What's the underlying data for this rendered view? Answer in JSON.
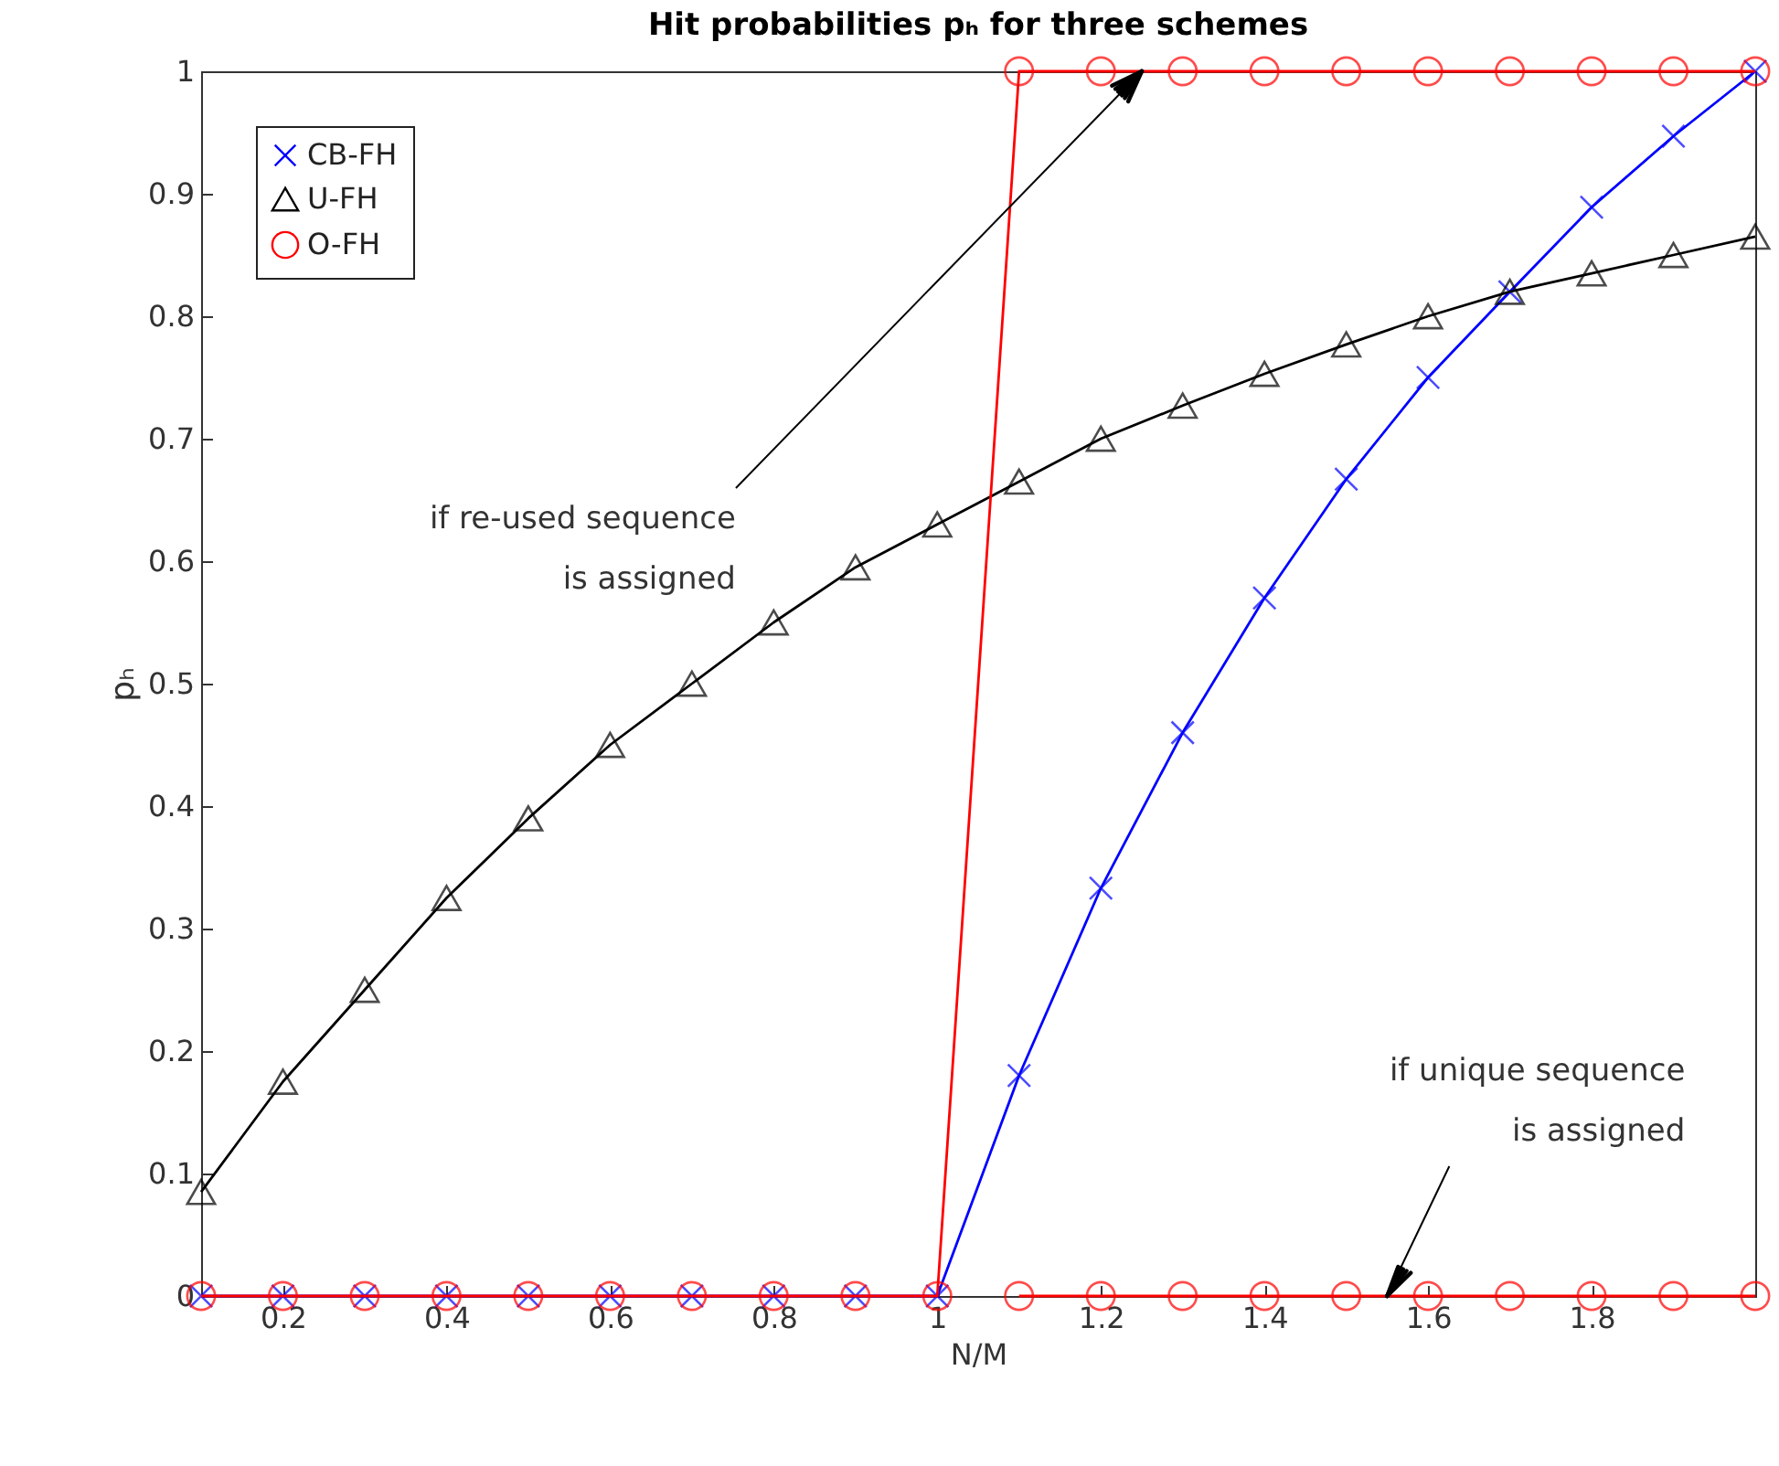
{
  "chart_data": {
    "type": "line",
    "title": "Hit probabilities pₕ for three schemes",
    "xlabel": "N/M",
    "ylabel": "pₕ",
    "x": [
      0.1,
      0.2,
      0.3,
      0.4,
      0.5,
      0.6,
      0.7,
      0.8,
      0.9,
      1.0,
      1.1,
      1.2,
      1.3,
      1.4,
      1.5,
      1.6,
      1.7,
      1.8,
      1.9,
      2.0
    ],
    "series": [
      {
        "name": "CB-FH",
        "color": "#0000ff",
        "marker": "cross",
        "values": [
          0,
          0,
          0,
          0,
          0,
          0,
          0,
          0,
          0,
          0,
          0.18,
          0.333,
          0.46,
          0.57,
          0.667,
          0.75,
          0.82,
          0.889,
          0.947,
          1.0
        ]
      },
      {
        "name": "U-FH",
        "color": "#000000",
        "marker": "triangle",
        "values": [
          0.085,
          0.175,
          0.25,
          0.325,
          0.39,
          0.45,
          0.5,
          0.55,
          0.595,
          0.63,
          0.665,
          0.7,
          0.727,
          0.753,
          0.777,
          0.8,
          0.82,
          0.835,
          0.85,
          0.865
        ]
      },
      {
        "name": "O-FH",
        "color": "#ff0000",
        "marker": "circle",
        "values": [
          0,
          0,
          0,
          0,
          0,
          0,
          0,
          0,
          0,
          0,
          1,
          1,
          1,
          1,
          1,
          1,
          1,
          1,
          1,
          1
        ]
      },
      {
        "color": "#ff0000",
        "marker": "circle",
        "x": [
          1.1,
          1.2,
          1.3,
          1.4,
          1.5,
          1.6,
          1.7,
          1.8,
          1.9,
          2.0
        ],
        "values": [
          0,
          0,
          0,
          0,
          0,
          0,
          0,
          0,
          0,
          0
        ]
      }
    ],
    "xlim": [
      0.1,
      2
    ],
    "xticks": [
      0.2,
      0.4,
      0.6,
      0.8,
      1,
      1.2,
      1.4,
      1.6,
      1.8
    ],
    "ylim": [
      0,
      1
    ],
    "yticks": [
      0,
      0.1,
      0.2,
      0.3,
      0.4,
      0.5,
      0.6,
      0.7,
      0.8,
      0.9,
      1
    ],
    "legend": "top left",
    "annotations": [
      {
        "text": "if re-used sequence\nis assigned",
        "x": 1.25,
        "y": 1
      },
      {
        "text": "if unique sequence\nis assigned",
        "x": 1.55,
        "y": 0
      }
    ]
  }
}
